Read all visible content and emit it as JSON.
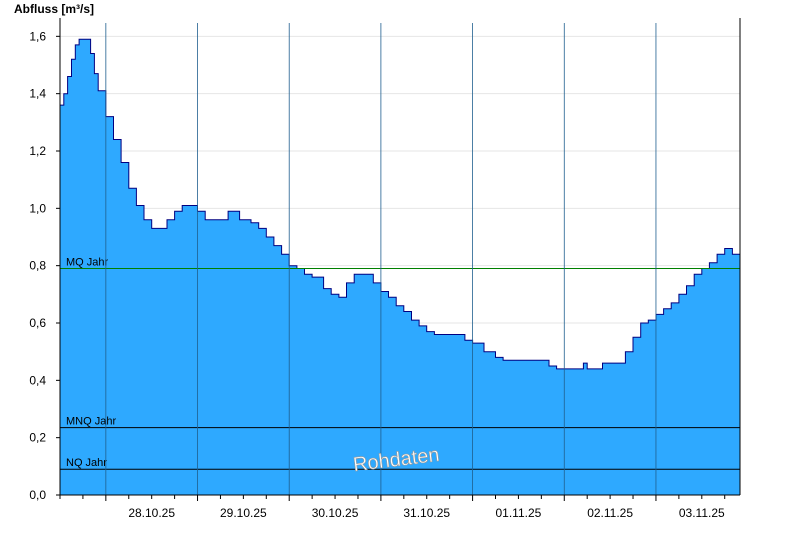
{
  "chart_data": {
    "type": "area",
    "ylabel": "Abfluss [m³/s]",
    "ylim": [
      0,
      1.65
    ],
    "yticks": [
      0,
      0.2,
      0.4,
      0.6,
      0.8,
      1.0,
      1.2,
      1.4,
      1.6
    ],
    "ytick_labels": [
      "0,0",
      "0,2",
      "0,4",
      "0,6",
      "0,8",
      "1,0",
      "1,2",
      "1,4",
      "1,6"
    ],
    "xlim": [
      "2025-10-27T12:00",
      "2025-11-03T22:00"
    ],
    "xticks": [
      {
        "label": "28.10.25",
        "at": "2025-10-28T12:00"
      },
      {
        "label": "29.10.25",
        "at": "2025-10-29T12:00"
      },
      {
        "label": "30.10.25",
        "at": "2025-10-30T12:00"
      },
      {
        "label": "31.10.25",
        "at": "2025-10-31T12:00"
      },
      {
        "label": "01.11.25",
        "at": "2025-11-01T12:00"
      },
      {
        "label": "02.11.25",
        "at": "2025-11-02T12:00"
      },
      {
        "label": "03.11.25",
        "at": "2025-11-03T12:00"
      }
    ],
    "day_boundaries": [
      "2025-10-28T00:00",
      "2025-10-29T00:00",
      "2025-10-30T00:00",
      "2025-10-31T00:00",
      "2025-11-01T00:00",
      "2025-11-02T00:00",
      "2025-11-03T00:00"
    ],
    "grid": true,
    "fill_color": "#2ea9ff",
    "line_color": "#000080",
    "series": [
      {
        "x": [
          "2025-10-27T12:00",
          "2025-10-27T13:00",
          "2025-10-27T14:00",
          "2025-10-27T15:00",
          "2025-10-27T16:00",
          "2025-10-27T17:00",
          "2025-10-27T18:00",
          "2025-10-27T20:00",
          "2025-10-27T21:00",
          "2025-10-27T22:00",
          "2025-10-28T00:00",
          "2025-10-28T02:00",
          "2025-10-28T04:00",
          "2025-10-28T06:00",
          "2025-10-28T08:00",
          "2025-10-28T10:00",
          "2025-10-28T12:00",
          "2025-10-28T14:00",
          "2025-10-28T16:00",
          "2025-10-28T18:00",
          "2025-10-28T20:00",
          "2025-10-28T22:00",
          "2025-10-29T00:00",
          "2025-10-29T02:00",
          "2025-10-29T04:00",
          "2025-10-29T06:00",
          "2025-10-29T08:00",
          "2025-10-29T11:00",
          "2025-10-29T14:00",
          "2025-10-29T16:00",
          "2025-10-29T18:00",
          "2025-10-29T20:00",
          "2025-10-29T22:00",
          "2025-10-30T00:00",
          "2025-10-30T02:00",
          "2025-10-30T04:00",
          "2025-10-30T06:00",
          "2025-10-30T09:00",
          "2025-10-30T11:00",
          "2025-10-30T13:00",
          "2025-10-30T15:00",
          "2025-10-30T17:00",
          "2025-10-30T18:00",
          "2025-10-30T20:00",
          "2025-10-30T22:00",
          "2025-10-31T00:00",
          "2025-10-31T02:00",
          "2025-10-31T04:00",
          "2025-10-31T06:00",
          "2025-10-31T08:00",
          "2025-10-31T10:00",
          "2025-10-31T12:00",
          "2025-10-31T14:00",
          "2025-10-31T16:00",
          "2025-10-31T18:00",
          "2025-10-31T20:00",
          "2025-10-31T22:00",
          "2025-11-01T00:00",
          "2025-11-01T03:00",
          "2025-11-01T06:00",
          "2025-11-01T08:00",
          "2025-11-01T10:00",
          "2025-11-01T12:00",
          "2025-11-01T14:00",
          "2025-11-01T16:00",
          "2025-11-01T18:00",
          "2025-11-01T20:00",
          "2025-11-01T22:00",
          "2025-11-02T00:00",
          "2025-11-02T02:00",
          "2025-11-02T04:00",
          "2025-11-02T05:00",
          "2025-11-02T06:00",
          "2025-11-02T08:00",
          "2025-11-02T10:00",
          "2025-11-02T12:00",
          "2025-11-02T14:00",
          "2025-11-02T16:00",
          "2025-11-02T18:00",
          "2025-11-02T20:00",
          "2025-11-02T22:00",
          "2025-11-03T00:00",
          "2025-11-03T02:00",
          "2025-11-03T04:00",
          "2025-11-03T06:00",
          "2025-11-03T08:00",
          "2025-11-03T10:00",
          "2025-11-03T12:00",
          "2025-11-03T14:00",
          "2025-11-03T16:00",
          "2025-11-03T18:00",
          "2025-11-03T20:00",
          "2025-11-03T22:00"
        ],
        "y": [
          1.36,
          1.4,
          1.46,
          1.52,
          1.57,
          1.59,
          1.59,
          1.54,
          1.47,
          1.41,
          1.32,
          1.24,
          1.16,
          1.07,
          1.01,
          0.96,
          0.93,
          0.93,
          0.96,
          0.99,
          1.01,
          1.01,
          0.99,
          0.96,
          0.96,
          0.96,
          0.99,
          0.96,
          0.95,
          0.93,
          0.9,
          0.87,
          0.84,
          0.8,
          0.79,
          0.77,
          0.76,
          0.72,
          0.7,
          0.69,
          0.74,
          0.77,
          0.77,
          0.77,
          0.74,
          0.71,
          0.69,
          0.66,
          0.64,
          0.61,
          0.59,
          0.57,
          0.56,
          0.56,
          0.56,
          0.56,
          0.54,
          0.53,
          0.5,
          0.48,
          0.47,
          0.47,
          0.47,
          0.47,
          0.47,
          0.47,
          0.45,
          0.44,
          0.44,
          0.44,
          0.44,
          0.46,
          0.44,
          0.44,
          0.46,
          0.46,
          0.46,
          0.5,
          0.55,
          0.6,
          0.61,
          0.63,
          0.65,
          0.67,
          0.7,
          0.73,
          0.77,
          0.79,
          0.81,
          0.84,
          0.86,
          0.84,
          0.83
        ]
      }
    ],
    "reference_lines": [
      {
        "label": "MQ Jahr",
        "value": 0.79,
        "color": "#008000"
      },
      {
        "label": "MNQ Jahr",
        "value": 0.235,
        "color": "#000000"
      },
      {
        "label": "NQ Jahr",
        "value": 0.09,
        "color": "#000000"
      }
    ],
    "watermark": "Rohdaten"
  }
}
